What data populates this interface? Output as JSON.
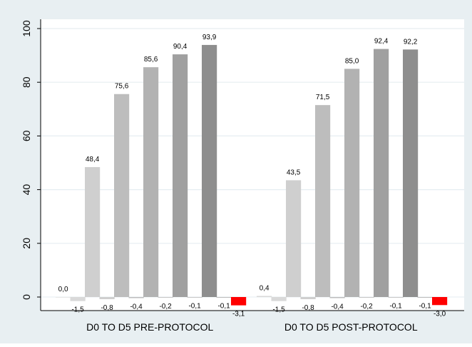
{
  "colors": {
    "outer_background": "#e8eff2",
    "plot_background": "#ffffff",
    "axis": "#000000",
    "gridline": "#e6eef1",
    "bar_light": "#d9d9d9",
    "bar_mid": "#bdbdbd",
    "bar_mid2": "#b2b2b2",
    "bar_mid3": "#a6a6a6",
    "bar_dark": "#9a9a9a",
    "bar_darker": "#8c8c8c",
    "bar_negative": "#ff0000"
  },
  "chart_data": {
    "type": "bar",
    "grid": true,
    "ylim": [
      -5,
      105
    ],
    "yticks": [
      "0",
      "20",
      "40",
      "60",
      "80",
      "100"
    ],
    "ytick_values": [
      0,
      20,
      40,
      60,
      80,
      100
    ],
    "groups": [
      {
        "label": "D0 TO D5 PRE-PROTOCOL",
        "bars": [
          {
            "value": 0.0,
            "label": "0,0",
            "color": "#d9d9d9"
          },
          {
            "value": -1.5,
            "label": "-1,5",
            "color": "#d9d9d9"
          },
          {
            "value": 48.4,
            "label": "48,4",
            "color": "#cfcfcf"
          },
          {
            "value": -0.8,
            "label": "-0,8",
            "color": "#cfcfcf"
          },
          {
            "value": 75.6,
            "label": "75,6",
            "color": "#bdbdbd"
          },
          {
            "value": -0.4,
            "label": "-0,4",
            "color": "#bdbdbd"
          },
          {
            "value": 85.6,
            "label": "85,6",
            "color": "#b2b2b2"
          },
          {
            "value": -0.2,
            "label": "-0,2",
            "color": "#b2b2b2"
          },
          {
            "value": 90.4,
            "label": "90,4",
            "color": "#a0a0a0"
          },
          {
            "value": -0.1,
            "label": "-0,1",
            "color": "#a0a0a0"
          },
          {
            "value": 93.9,
            "label": "93,9",
            "color": "#8e8e8e"
          },
          {
            "value": -0.1,
            "label": "-0,1",
            "color": "#8e8e8e"
          },
          {
            "value": -3.1,
            "label": "-3,1",
            "color": "#ff0000"
          }
        ]
      },
      {
        "label": "D0 TO D5 POST-PROTOCOL",
        "bars": [
          {
            "value": 0.4,
            "label": "0,4",
            "color": "#d9d9d9"
          },
          {
            "value": -1.5,
            "label": "-1,5",
            "color": "#d9d9d9"
          },
          {
            "value": 43.5,
            "label": "43,5",
            "color": "#cfcfcf"
          },
          {
            "value": -0.8,
            "label": "-0,8",
            "color": "#cfcfcf"
          },
          {
            "value": 71.5,
            "label": "71,5",
            "color": "#bdbdbd"
          },
          {
            "value": -0.4,
            "label": "-0,4",
            "color": "#bdbdbd"
          },
          {
            "value": 85.0,
            "label": "85,0",
            "color": "#b2b2b2"
          },
          {
            "value": -0.2,
            "label": "-0,2",
            "color": "#b2b2b2"
          },
          {
            "value": 92.4,
            "label": "92,4",
            "color": "#a0a0a0"
          },
          {
            "value": -0.1,
            "label": "-0,1",
            "color": "#a0a0a0"
          },
          {
            "value": 92.2,
            "label": "92,2",
            "color": "#8e8e8e"
          },
          {
            "value": -0.1,
            "label": "-0,1",
            "color": "#8e8e8e"
          },
          {
            "value": -3.0,
            "label": "-3,0",
            "color": "#ff0000"
          }
        ]
      }
    ]
  }
}
